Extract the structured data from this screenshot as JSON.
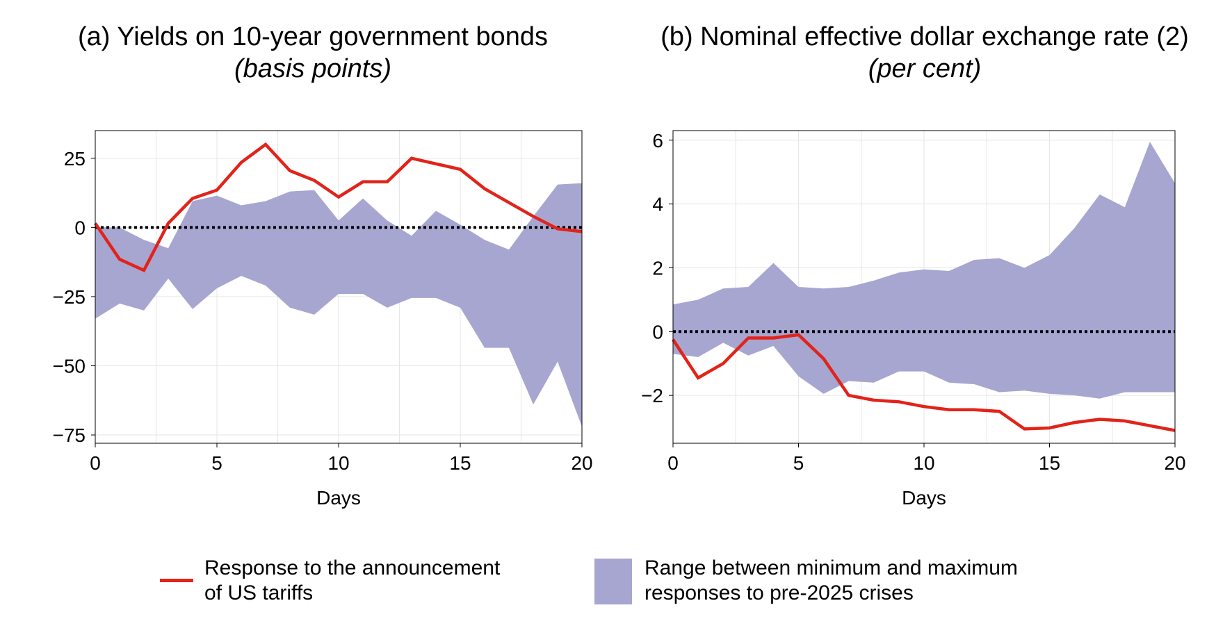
{
  "panels": [
    {
      "title": "(a) Yields on 10-year government bonds",
      "subtitle": "(basis points)"
    },
    {
      "title": "(b) Nominal effective dollar exchange rate (2)",
      "subtitle": "(per cent)"
    }
  ],
  "legend": {
    "line_label_1": "Response to the announcement",
    "line_label_2": "of US tariffs",
    "range_label_1": "Range between minimum and maximum",
    "range_label_2": "responses to pre-2025 crises"
  },
  "colors": {
    "response_line": "#e2231a",
    "range_band": "#a6a6d1",
    "zero_line": "#000000",
    "grid": "#e6e6e6"
  },
  "chart_data": [
    {
      "type": "line",
      "title": "(a) Yields on 10-year government bonds",
      "subtitle": "(basis points)",
      "xlabel": "Days",
      "ylabel": "",
      "xlim": [
        0,
        20
      ],
      "ylim": [
        -78,
        35
      ],
      "xticks": [
        0,
        5,
        10,
        15,
        20
      ],
      "yticks": [
        25,
        0,
        -25,
        -50,
        -75
      ],
      "ytick_labels": [
        "25",
        "0",
        "−25",
        "−50",
        "−75"
      ],
      "x": [
        0,
        1,
        2,
        3,
        4,
        5,
        6,
        7,
        8,
        9,
        10,
        11,
        12,
        13,
        14,
        15,
        16,
        17,
        18,
        19,
        20
      ],
      "series": [
        {
          "name": "Response to the announcement of US tariffs",
          "kind": "line",
          "values": [
            1.5,
            -11.5,
            -15.5,
            1.5,
            10.5,
            13.5,
            23.5,
            30,
            20.5,
            17,
            11,
            16.5,
            16.5,
            25,
            23,
            21,
            14,
            9,
            4,
            -0.5,
            -1.5
          ]
        },
        {
          "name": "Range between minimum and maximum responses to pre-2025 crises",
          "kind": "band",
          "upper": [
            0,
            0,
            -4.5,
            -7.5,
            9.5,
            11.5,
            8,
            9.5,
            13,
            13.5,
            2.5,
            10.5,
            2.5,
            -3,
            6,
            1,
            -4.5,
            -8,
            4,
            15.5,
            16
          ],
          "lower": [
            -33,
            -27.5,
            -30,
            -18.5,
            -29.5,
            -22,
            -17.5,
            -21,
            -29,
            -31.5,
            -24,
            -24,
            -29,
            -25.5,
            -25.5,
            -29,
            -43.5,
            -43.5,
            -64,
            -48.5,
            -72
          ]
        }
      ],
      "zero_line": 0,
      "grid": true
    },
    {
      "type": "line",
      "title": "(b) Nominal effective dollar exchange rate (2)",
      "subtitle": "(per cent)",
      "xlabel": "Days",
      "ylabel": "",
      "xlim": [
        0,
        20
      ],
      "ylim": [
        -3.5,
        6.3
      ],
      "xticks": [
        0,
        5,
        10,
        15,
        20
      ],
      "yticks": [
        6,
        4,
        2,
        0,
        -2
      ],
      "ytick_labels": [
        "6",
        "4",
        "2",
        "0",
        "−2"
      ],
      "x": [
        0,
        1,
        2,
        3,
        4,
        5,
        6,
        7,
        8,
        9,
        10,
        11,
        12,
        13,
        14,
        15,
        16,
        17,
        18,
        19,
        20
      ],
      "series": [
        {
          "name": "Response to the announcement of US tariffs",
          "kind": "line",
          "values": [
            -0.25,
            -1.45,
            -1,
            -0.2,
            -0.2,
            -0.1,
            -0.85,
            -2,
            -2.15,
            -2.2,
            -2.35,
            -2.45,
            -2.45,
            -2.5,
            -3.05,
            -3.02,
            -2.85,
            -2.75,
            -2.8,
            -2.95,
            -3.1
          ]
        },
        {
          "name": "Range between minimum and maximum responses to pre-2025 crises",
          "kind": "band",
          "upper": [
            0.85,
            1,
            1.35,
            1.4,
            2.15,
            1.4,
            1.35,
            1.4,
            1.6,
            1.85,
            1.95,
            1.9,
            2.25,
            2.3,
            2,
            2.4,
            3.25,
            4.3,
            3.9,
            5.95,
            4.65
          ],
          "lower": [
            -0.7,
            -0.8,
            -0.35,
            -0.75,
            -0.45,
            -1.4,
            -1.95,
            -1.55,
            -1.6,
            -1.25,
            -1.25,
            -1.6,
            -1.65,
            -1.9,
            -1.85,
            -1.95,
            -2,
            -2.1,
            -1.9,
            -1.9,
            -1.9
          ]
        }
      ],
      "zero_line": 0,
      "grid": true
    }
  ]
}
